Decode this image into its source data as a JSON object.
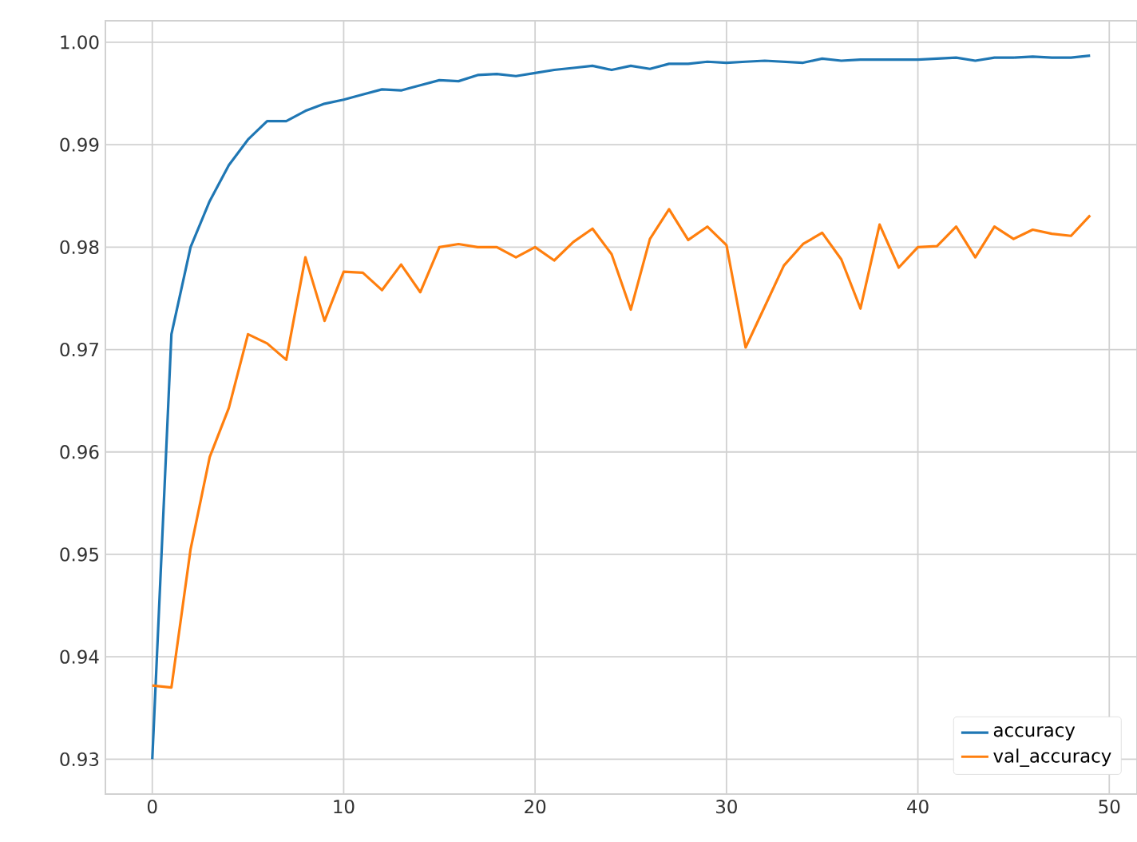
{
  "chart_data": {
    "type": "line",
    "x": [
      0,
      1,
      2,
      3,
      4,
      5,
      6,
      7,
      8,
      9,
      10,
      11,
      12,
      13,
      14,
      15,
      16,
      17,
      18,
      19,
      20,
      21,
      22,
      23,
      24,
      25,
      26,
      27,
      28,
      29,
      30,
      31,
      32,
      33,
      34,
      35,
      36,
      37,
      38,
      39,
      40,
      41,
      42,
      43,
      44,
      45,
      46,
      47,
      48,
      49
    ],
    "series": [
      {
        "name": "accuracy",
        "color": "#1f77b4",
        "values": [
          0.93,
          0.9715,
          0.98,
          0.9845,
          0.988,
          0.9905,
          0.9923,
          0.9923,
          0.9933,
          0.994,
          0.9944,
          0.9949,
          0.9954,
          0.9953,
          0.9958,
          0.9963,
          0.9962,
          0.9968,
          0.9969,
          0.9967,
          0.997,
          0.9973,
          0.9975,
          0.9977,
          0.9973,
          0.9977,
          0.9974,
          0.9979,
          0.9979,
          0.9981,
          0.998,
          0.9981,
          0.9982,
          0.9981,
          0.998,
          0.9984,
          0.9982,
          0.9983,
          0.9983,
          0.9983,
          0.9983,
          0.9984,
          0.9985,
          0.9982,
          0.9985,
          0.9985,
          0.9986,
          0.9985,
          0.9985,
          0.9987
        ]
      },
      {
        "name": "val_accuracy",
        "color": "#ff7f0e",
        "values": [
          0.9372,
          0.937,
          0.9505,
          0.9595,
          0.9643,
          0.9715,
          0.9706,
          0.969,
          0.979,
          0.9728,
          0.9776,
          0.9775,
          0.9758,
          0.9783,
          0.9756,
          0.98,
          0.9803,
          0.98,
          0.98,
          0.979,
          0.98,
          0.9787,
          0.9805,
          0.9818,
          0.9793,
          0.9739,
          0.9808,
          0.9837,
          0.9807,
          0.982,
          0.9802,
          0.9702,
          0.9742,
          0.9782,
          0.9803,
          0.9814,
          0.9788,
          0.974,
          0.9822,
          0.978,
          0.98,
          0.9801,
          0.982,
          0.979,
          0.982,
          0.9808,
          0.9817,
          0.9813,
          0.9811,
          0.9831
        ]
      }
    ],
    "xlim": [
      -2.45,
      51.45
    ],
    "ylim": [
      0.9266,
      1.0021
    ],
    "xticks": [
      0,
      10,
      20,
      30,
      40,
      50
    ],
    "yticks": [
      {
        "value": 0.93,
        "label": "0.93"
      },
      {
        "value": 0.94,
        "label": "0.94"
      },
      {
        "value": 0.95,
        "label": "0.95"
      },
      {
        "value": 0.96,
        "label": "0.96"
      },
      {
        "value": 0.97,
        "label": "0.97"
      },
      {
        "value": 0.98,
        "label": "0.98"
      },
      {
        "value": 0.99,
        "label": "0.99"
      },
      {
        "value": 1.0,
        "label": "1.00"
      }
    ],
    "grid": true,
    "legend": "bottom right",
    "line_style": "solid",
    "marker": "none"
  }
}
